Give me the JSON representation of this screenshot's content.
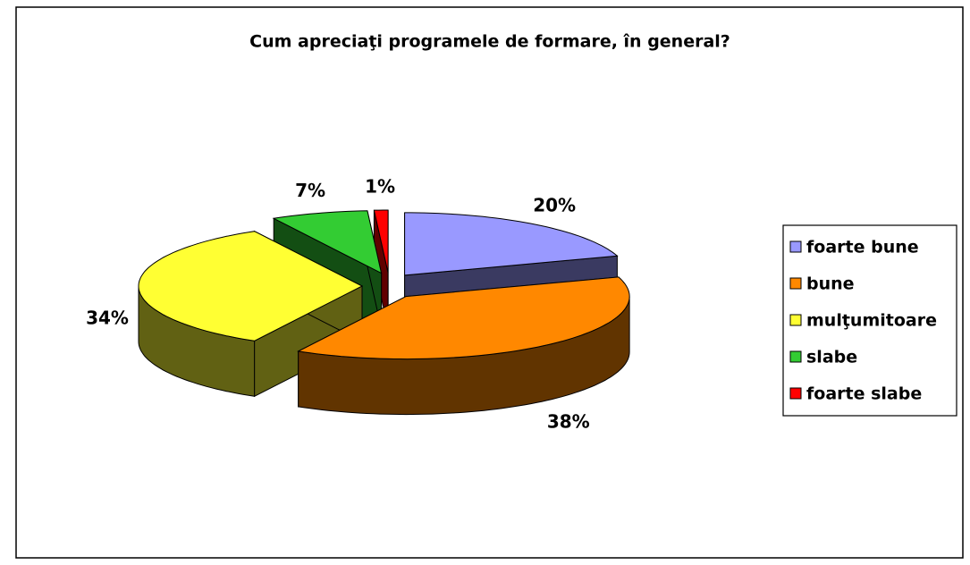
{
  "chart_data": {
    "type": "pie3d",
    "title": "Cum apreciaţi programele de formare, în general?",
    "categories": [
      "foarte bune",
      "bune",
      "mulţumitoare",
      "slabe",
      "foarte slabe"
    ],
    "values": [
      20,
      38,
      34,
      7,
      1
    ],
    "value_labels": [
      "20%",
      "38%",
      "34%",
      "7%",
      "1%"
    ],
    "colors": [
      "#9999ff",
      "#ff8800",
      "#ffff33",
      "#33cc33",
      "#ff0000"
    ],
    "legend": "right"
  }
}
